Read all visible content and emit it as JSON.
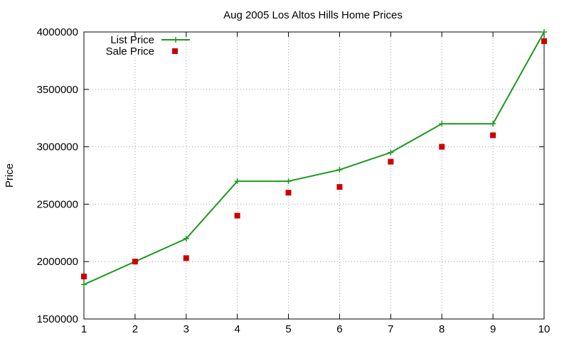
{
  "chart_data": {
    "type": "line",
    "title": "Aug 2005 Los Altos Hills Home Prices",
    "xlabel": "",
    "ylabel": "Price",
    "x": [
      1,
      2,
      3,
      4,
      5,
      6,
      7,
      8,
      9,
      10
    ],
    "xlim": [
      1,
      10
    ],
    "ylim": [
      1500000,
      4000000
    ],
    "xticks": [
      "1",
      "2",
      "3",
      "4",
      "5",
      "6",
      "7",
      "8",
      "9",
      "10"
    ],
    "yticks": [
      1500000,
      2000000,
      2500000,
      3000000,
      3500000,
      4000000
    ],
    "ytick_labels": [
      "1500000",
      "2000000",
      "2500000",
      "3000000",
      "3500000",
      "4000000"
    ],
    "grid": true,
    "legend_position": "top-left",
    "series": [
      {
        "name": "List Price",
        "style": "line-with-plus-markers",
        "color": "#1a9a1a",
        "values": [
          1800000,
          2000000,
          2200000,
          2700000,
          2700000,
          2800000,
          2950000,
          3200000,
          3200000,
          4000000
        ]
      },
      {
        "name": "Sale Price",
        "style": "square-points",
        "color": "#cc0000",
        "values": [
          1870000,
          2000000,
          2030000,
          2400000,
          2600000,
          2650000,
          2870000,
          3000000,
          3100000,
          3920000
        ]
      }
    ]
  }
}
